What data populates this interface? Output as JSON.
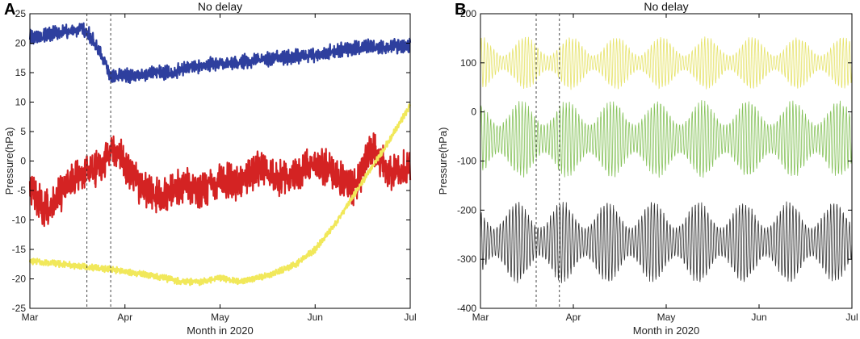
{
  "chart_data": [
    {
      "panel_label": "A",
      "type": "line",
      "title": "No delay",
      "xlabel": "Month in 2020",
      "ylabel": "Pressure(hPa)",
      "xlim": [
        0,
        4
      ],
      "ylim": [
        -25,
        25
      ],
      "x_tick_values": [
        0,
        1,
        2,
        3,
        4
      ],
      "x_tick_labels": [
        "Mar",
        "Apr",
        "May",
        "Jun",
        "Jul"
      ],
      "y_tick_values": [
        -25,
        -20,
        -15,
        -10,
        -5,
        0,
        5,
        10,
        15,
        20,
        25
      ],
      "y_tick_labels": [
        "-25",
        "-20",
        "-15",
        "-10",
        "-5",
        "0",
        "5",
        "10",
        "15",
        "20",
        "25"
      ],
      "vlines": [
        0.6,
        0.85
      ],
      "series": [
        {
          "name": "blue",
          "color": "#2e3f9e",
          "noise": 0.9,
          "x": [
            0,
            0.2,
            0.4,
            0.55,
            0.62,
            0.7,
            0.78,
            0.85,
            0.95,
            1.1,
            1.3,
            1.5,
            1.7,
            2.0,
            2.3,
            2.6,
            3.0,
            3.3,
            3.6,
            4.0
          ],
          "y": [
            21,
            21.5,
            22,
            22.5,
            21.5,
            19.5,
            17,
            14.5,
            14.5,
            14.5,
            15,
            15,
            16,
            16.5,
            17,
            17.5,
            18,
            19,
            19.5,
            19.5
          ]
        },
        {
          "name": "red",
          "color": "#d42323",
          "noise": 2.2,
          "x": [
            0,
            0.15,
            0.3,
            0.45,
            0.6,
            0.75,
            0.85,
            0.95,
            1.05,
            1.2,
            1.4,
            1.6,
            1.8,
            2.0,
            2.2,
            2.4,
            2.6,
            2.8,
            3.0,
            3.2,
            3.4,
            3.6,
            3.8,
            4.0
          ],
          "y": [
            -5,
            -8,
            -6,
            -3,
            -2,
            -1,
            2,
            1,
            -2,
            -5,
            -6,
            -4,
            -5,
            -3,
            -4,
            -1,
            -3,
            -2,
            0,
            -2,
            -5,
            2,
            -2,
            -1
          ]
        },
        {
          "name": "yellow",
          "color": "#f1e85a",
          "noise": 0.4,
          "x": [
            0,
            0.5,
            0.9,
            1.3,
            1.6,
            1.8,
            2.0,
            2.2,
            2.5,
            2.8,
            3.0,
            3.2,
            3.4,
            3.6,
            3.8,
            4.0
          ],
          "y": [
            -17,
            -17.8,
            -18.5,
            -19.5,
            -20.5,
            -20.5,
            -19.8,
            -20.5,
            -19.5,
            -17.5,
            -15,
            -11,
            -6,
            -1,
            4,
            9.5
          ]
        }
      ]
    },
    {
      "panel_label": "B",
      "type": "line",
      "title": "No delay",
      "xlabel": "Month in 2020",
      "ylabel": "Pressure(hPa)",
      "xlim": [
        0,
        4
      ],
      "ylim": [
        -400,
        200
      ],
      "x_tick_values": [
        0,
        1,
        2,
        3,
        4
      ],
      "x_tick_labels": [
        "Mar",
        "Apr",
        "May",
        "Jun",
        "Jul"
      ],
      "y_tick_values": [
        -400,
        -300,
        -200,
        -100,
        0,
        100,
        200
      ],
      "y_tick_labels": [
        "-400",
        "-300",
        "-200",
        "-100",
        "0",
        "100",
        "200"
      ],
      "vlines": [
        0.6,
        0.85
      ],
      "series": [
        {
          "name": "yellow",
          "color": "#e6e36a",
          "center": 100,
          "amp_min": 15,
          "amp_max": 55,
          "envelope_cycles": 8.2,
          "osc_cycles": 118
        },
        {
          "name": "green",
          "color": "#86c25a",
          "center": -55,
          "amp_min": 30,
          "amp_max": 80,
          "envelope_cycles": 8.2,
          "osc_cycles": 118
        },
        {
          "name": "black",
          "color": "#333333",
          "center": -265,
          "amp_min": 30,
          "amp_max": 85,
          "envelope_cycles": 8.2,
          "osc_cycles": 118
        }
      ]
    }
  ]
}
